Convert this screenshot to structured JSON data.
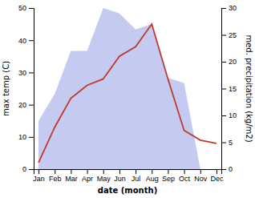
{
  "chart_data": {
    "type": "line",
    "categories": [
      "Jan",
      "Feb",
      "Mar",
      "Apr",
      "May",
      "Jun",
      "Jul",
      "Aug",
      "Sep",
      "Oct",
      "Nov",
      "Dec"
    ],
    "xlabel": "date (month)",
    "ylabel": "max temp (C)",
    "y2label": "med. precipitation (kg/m2)",
    "ylim": [
      0,
      50
    ],
    "yticks": [
      0,
      10,
      20,
      30,
      40,
      50
    ],
    "y2lim": [
      0,
      30
    ],
    "y2ticks": [
      0,
      5,
      10,
      15,
      20,
      25,
      30
    ],
    "series": [
      {
        "type": "area",
        "axis": "y2",
        "color": "#c5caf0",
        "values": [
          9,
          14,
          22,
          22,
          30,
          29,
          26,
          27,
          17,
          16,
          0,
          0
        ]
      },
      {
        "type": "line",
        "color": "#c0392b",
        "values": [
          2,
          13,
          22,
          26,
          28,
          35,
          38,
          45,
          28,
          12,
          9,
          8
        ]
      }
    ]
  }
}
